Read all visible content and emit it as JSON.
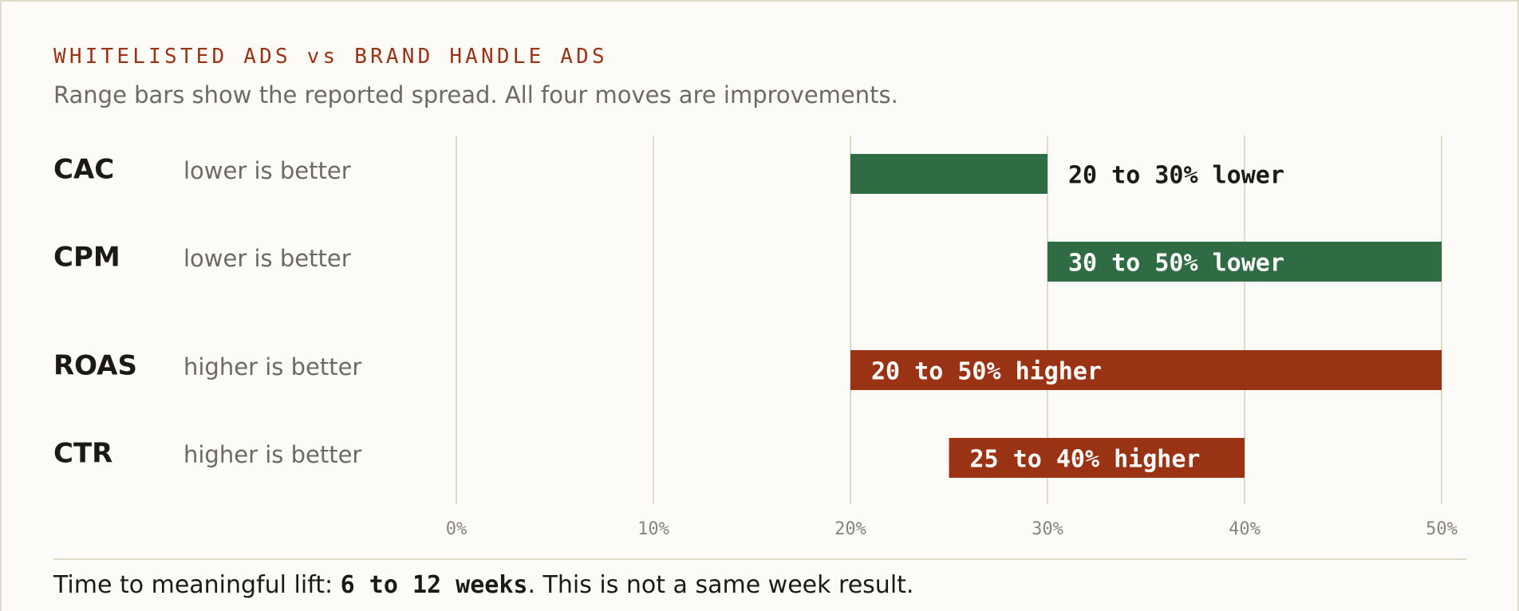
{
  "chart_data": {
    "type": "bar",
    "title": "WHITELISTED ADS vs BRAND HANDLE ADS",
    "subtitle": "Range bars show the reported spread. All four moves are improvements.",
    "xlim": [
      0,
      50
    ],
    "x_ticks": [
      "0%",
      "10%",
      "20%",
      "30%",
      "40%",
      "50%"
    ],
    "x_tick_values": [
      0,
      10,
      20,
      30,
      40,
      50
    ],
    "grid": true,
    "rows": [
      {
        "metric": "CAC",
        "note": "lower is better",
        "low": 20,
        "high": 30,
        "label": "20 to 30% lower",
        "direction": "lower",
        "color": "#2f6b43"
      },
      {
        "metric": "CPM",
        "note": "lower is better",
        "low": 30,
        "high": 50,
        "label": "30 to 50% lower",
        "direction": "lower",
        "color": "#2f6b43"
      },
      {
        "metric": "ROAS",
        "note": "higher is better",
        "low": 20,
        "high": 50,
        "label": "20 to 50% higher",
        "direction": "higher",
        "color": "#9a3214"
      },
      {
        "metric": "CTR",
        "note": "higher is better",
        "low": 25,
        "high": 40,
        "label": "25 to 40% higher",
        "direction": "higher",
        "color": "#9a3214"
      }
    ]
  },
  "footer": {
    "prefix": "Time to meaningful lift: ",
    "emphasis": "6 to 12 weeks",
    "suffix": ". This is not a same week result."
  },
  "colors": {
    "background": "#fcfbf7",
    "accent": "#9a3214",
    "lower_bar": "#2f6b43",
    "higher_bar": "#9a3214",
    "grid": "#dedbc8"
  }
}
